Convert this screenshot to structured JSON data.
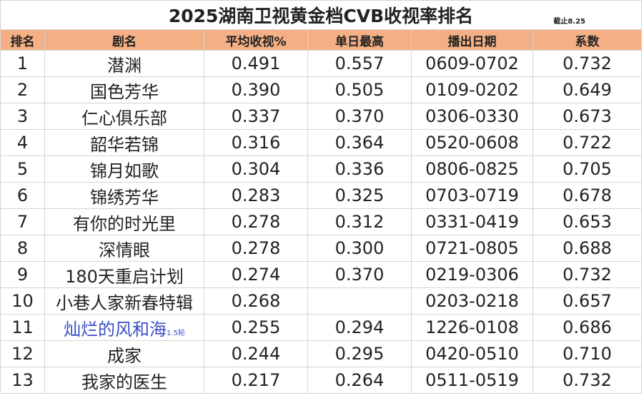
{
  "title": "2025湖南卫视黄金档CVB收视率排名",
  "note": "截止8.25",
  "header": [
    "排名",
    "剧名",
    "平均收视%",
    "单日最高",
    "播出日期",
    "系数"
  ],
  "rows": [
    {
      "rank": 1,
      "name": "潜渊",
      "avg": "0.491",
      "peak": "0.557",
      "dates": "0609-0702",
      "coef": "0.732"
    },
    {
      "rank": 2,
      "name": "国色芳华",
      "avg": "0.390",
      "peak": "0.505",
      "dates": "0109-0202",
      "coef": "0.649"
    },
    {
      "rank": 3,
      "name": "仁心俱乐部",
      "avg": "0.337",
      "peak": "0.370",
      "dates": "0306-0330",
      "coef": "0.673"
    },
    {
      "rank": 4,
      "name": "韶华若锦",
      "avg": "0.316",
      "peak": "0.364",
      "dates": "0520-0608",
      "coef": "0.722"
    },
    {
      "rank": 5,
      "name": "锦月如歌",
      "avg": "0.304",
      "peak": "0.336",
      "dates": "0806-0825",
      "coef": "0.705"
    },
    {
      "rank": 6,
      "name": "锦绣芳华",
      "avg": "0.283",
      "peak": "0.325",
      "dates": "0703-0719",
      "coef": "0.678"
    },
    {
      "rank": 7,
      "name": "有你的时光里",
      "avg": "0.278",
      "peak": "0.312",
      "dates": "0331-0419",
      "coef": "0.653"
    },
    {
      "rank": 8,
      "name": "深情眼",
      "avg": "0.278",
      "peak": "0.300",
      "dates": "0721-0805",
      "coef": "0.688"
    },
    {
      "rank": 9,
      "name": "180天重启计划",
      "avg": "0.274",
      "peak": "0.370",
      "dates": "0219-0306",
      "coef": "0.732"
    },
    {
      "rank": 10,
      "name": "小巷人家新春特辑",
      "avg": "0.268",
      "peak": null,
      "dates": "0203-0218",
      "coef": "0.657"
    },
    {
      "rank": 11,
      "name": "灿烂的风和海",
      "name_note": "1.5轮",
      "avg": "0.255",
      "peak": "0.294",
      "dates": "1226-0108",
      "coef": "0.686"
    },
    {
      "rank": 12,
      "name": "成家",
      "avg": "0.244",
      "peak": "0.295",
      "dates": "0420-0510",
      "coef": "0.710"
    },
    {
      "rank": 13,
      "name": "我家的医生",
      "avg": "0.217",
      "peak": "0.264",
      "dates": "0511-0519",
      "coef": "0.732"
    }
  ]
}
